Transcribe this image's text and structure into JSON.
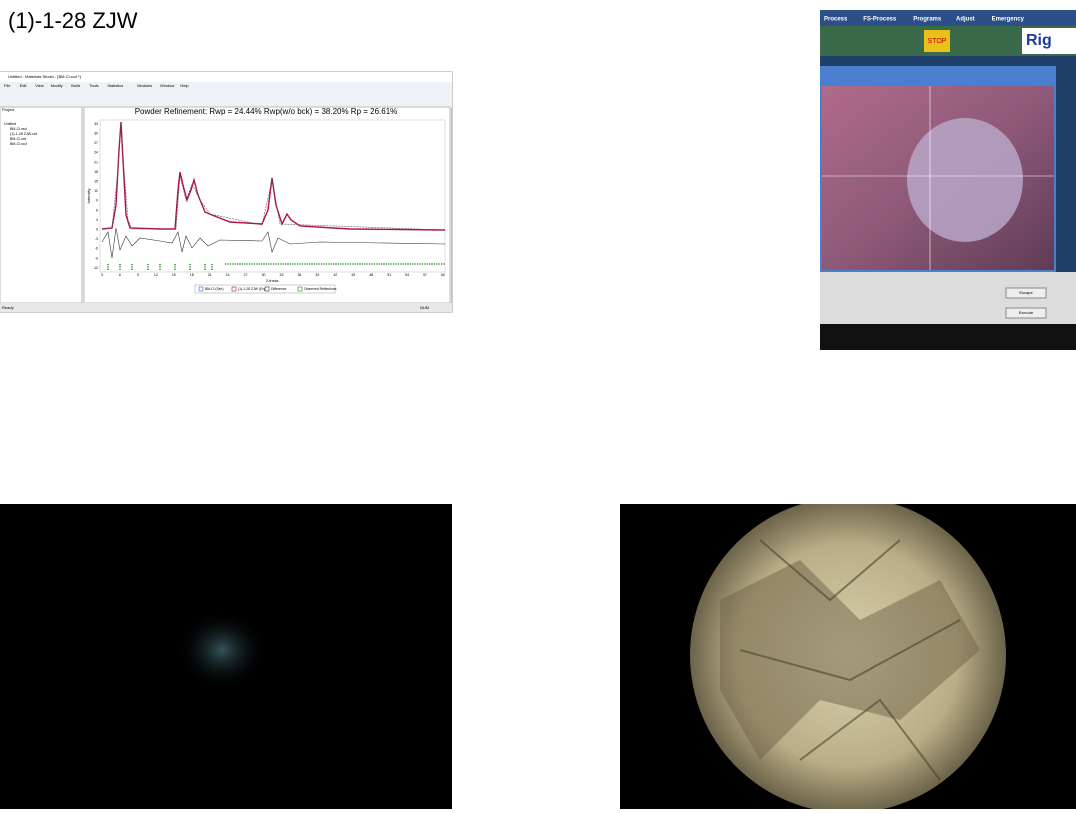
{
  "slide": {
    "title": "(1)-1-28 ZJW",
    "screenshot": {
      "window_title": "Untitled - Materials Studio - [BM-Cl.xcd *]",
      "menus": [
        "File",
        "Edit",
        "View",
        "Modify",
        "Build",
        "Tools",
        "Statistics",
        "Modules",
        "Window",
        "Help"
      ],
      "project_label": "Project",
      "tree": [
        "Untitled",
        "BM-Cl.xsd",
        "(1)-1-28 ZJW.xrd",
        "BM-Cl.xrd",
        "BM-Cl.xcd"
      ],
      "plot_title": "Powder Refinement:  Rwp = 24.44%   Rwp(w/o bck) = 38.20%   Rp = 26.61%",
      "y_label": "Intensity",
      "x_label": "2-theta",
      "yticks": [
        "33",
        "30",
        "27",
        "24",
        "21",
        "18",
        "15",
        "12",
        "9",
        "6",
        "3",
        "0",
        "-3",
        "-6",
        "-9",
        "-12"
      ],
      "xticks": [
        "3",
        "6",
        "9",
        "12",
        "15",
        "18",
        "21",
        "24",
        "27",
        "30",
        "33",
        "36",
        "39",
        "42",
        "45",
        "48",
        "51",
        "54",
        "57",
        "60"
      ],
      "legend": [
        "BM-Cl (Sim)",
        "(1)-1-28 ZJW (Exp)",
        "Difference",
        "Observed Reflections"
      ],
      "status": [
        "Ready",
        "NUM"
      ]
    },
    "photo": {
      "menus": [
        "Process",
        "FS-Process",
        "Programs",
        "Adjust",
        "Emergency"
      ],
      "brand": "Rig",
      "stop": "STOP",
      "buttons": [
        "Escape",
        "Execute"
      ]
    }
  }
}
